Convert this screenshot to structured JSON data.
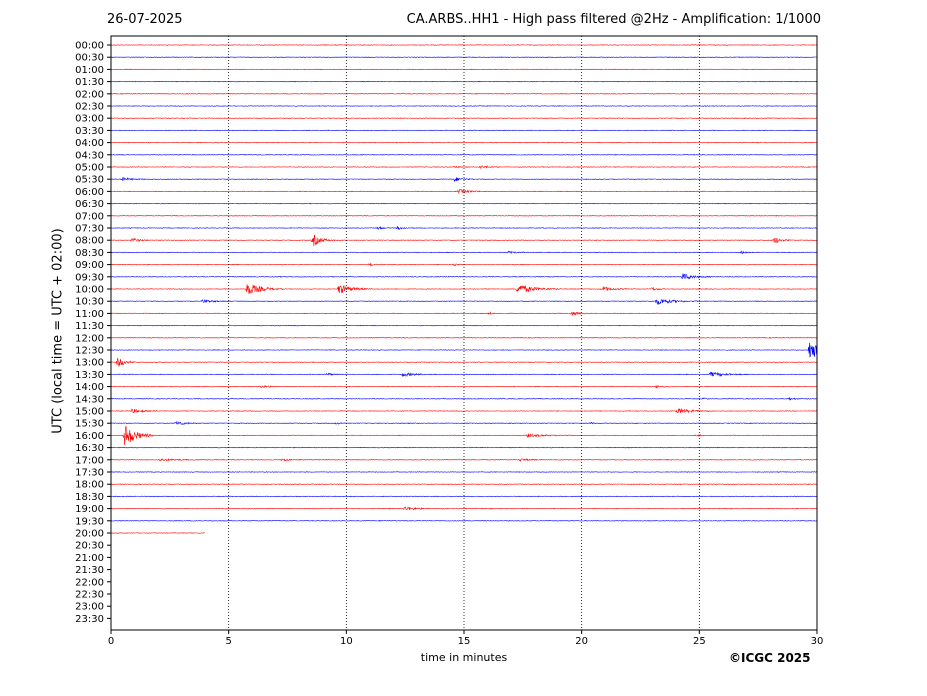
{
  "header": {
    "date": "26-07-2025",
    "title": "CA.ARBS..HH1 - High pass filtered @2Hz - Amplification: 1/1000"
  },
  "footer": {
    "credit": "©ICGC 2025"
  },
  "colors": {
    "trace_even": "#ff0000",
    "trace_odd": "#0000ff",
    "axis": "#000000",
    "grid": "#000000"
  },
  "chart_data": {
    "type": "line",
    "title": "CA.ARBS..HH1 - High pass filtered @2Hz - Amplification: 1/1000",
    "xlabel": "time in minutes",
    "ylabel": "UTC (local time = UTC + 02:00)",
    "xlim": [
      0,
      30
    ],
    "x_ticks": [
      0,
      5,
      10,
      15,
      20,
      25,
      30
    ],
    "vertical_grid_at": [
      5,
      10,
      15,
      20,
      25
    ],
    "grid_style": "dotted vertical lines",
    "y_ticks": [
      "00:00",
      "00:30",
      "01:00",
      "01:30",
      "02:00",
      "02:30",
      "03:00",
      "03:30",
      "04:00",
      "04:30",
      "05:00",
      "05:30",
      "06:00",
      "06:30",
      "07:00",
      "07:30",
      "08:00",
      "08:30",
      "09:00",
      "09:30",
      "10:00",
      "10:30",
      "11:00",
      "11:30",
      "12:00",
      "12:30",
      "13:00",
      "13:30",
      "14:00",
      "14:30",
      "15:00",
      "15:30",
      "16:00",
      "16:30",
      "17:00",
      "17:30",
      "18:00",
      "18:30",
      "19:00",
      "19:30",
      "20:00",
      "20:30",
      "21:00",
      "21:30",
      "22:00",
      "22:30",
      "23:00",
      "23:30"
    ],
    "trace_color_pattern": [
      "red",
      "blue"
    ],
    "recorded_until": {
      "row": "20:00",
      "minute": 4
    },
    "events": [
      {
        "row": "05:00",
        "minute": 15.7,
        "amp": 0.15,
        "dur": 0.9
      },
      {
        "row": "05:00",
        "minute": 14.6,
        "amp": 0.08,
        "dur": 0.5
      },
      {
        "row": "05:30",
        "minute": 0.5,
        "amp": 0.15,
        "dur": 1.0
      },
      {
        "row": "05:30",
        "minute": 14.6,
        "amp": 0.2,
        "dur": 0.9
      },
      {
        "row": "06:00",
        "minute": 14.8,
        "amp": 0.18,
        "dur": 1.2
      },
      {
        "row": "07:30",
        "minute": 11.4,
        "amp": 0.2,
        "dur": 0.3
      },
      {
        "row": "07:30",
        "minute": 12.2,
        "amp": 0.15,
        "dur": 0.6
      },
      {
        "row": "08:00",
        "minute": 0.9,
        "amp": 0.2,
        "dur": 0.9
      },
      {
        "row": "08:00",
        "minute": 8.6,
        "amp": 0.55,
        "dur": 0.9
      },
      {
        "row": "08:00",
        "minute": 28.2,
        "amp": 0.3,
        "dur": 0.8
      },
      {
        "row": "08:30",
        "minute": 16.9,
        "amp": 0.1,
        "dur": 0.8
      },
      {
        "row": "08:30",
        "minute": 26.8,
        "amp": 0.1,
        "dur": 0.5
      },
      {
        "row": "09:00",
        "minute": 11.0,
        "amp": 0.12,
        "dur": 0.5
      },
      {
        "row": "09:00",
        "minute": 14.6,
        "amp": 0.12,
        "dur": 0.4
      },
      {
        "row": "09:30",
        "minute": 24.3,
        "amp": 0.3,
        "dur": 1.3
      },
      {
        "row": "10:00",
        "minute": 5.8,
        "amp": 0.6,
        "dur": 1.5
      },
      {
        "row": "10:00",
        "minute": 9.7,
        "amp": 0.45,
        "dur": 1.4
      },
      {
        "row": "10:00",
        "minute": 17.3,
        "amp": 0.45,
        "dur": 1.8
      },
      {
        "row": "10:00",
        "minute": 20.9,
        "amp": 0.25,
        "dur": 1.0
      },
      {
        "row": "10:00",
        "minute": 23.0,
        "amp": 0.15,
        "dur": 0.6
      },
      {
        "row": "10:30",
        "minute": 3.9,
        "amp": 0.15,
        "dur": 1.2
      },
      {
        "row": "10:30",
        "minute": 23.2,
        "amp": 0.3,
        "dur": 1.8
      },
      {
        "row": "11:00",
        "minute": 19.6,
        "amp": 0.18,
        "dur": 0.7
      },
      {
        "row": "11:00",
        "minute": 16.1,
        "amp": 0.1,
        "dur": 0.3
      },
      {
        "row": "12:30",
        "minute": 29.7,
        "amp": 1.0,
        "dur": 1.2
      },
      {
        "row": "13:00",
        "minute": 0.3,
        "amp": 0.45,
        "dur": 0.8
      },
      {
        "row": "13:30",
        "minute": 9.2,
        "amp": 0.12,
        "dur": 0.6
      },
      {
        "row": "13:30",
        "minute": 12.4,
        "amp": 0.18,
        "dur": 1.4
      },
      {
        "row": "13:30",
        "minute": 25.5,
        "amp": 0.2,
        "dur": 1.8
      },
      {
        "row": "14:00",
        "minute": 6.4,
        "amp": 0.1,
        "dur": 0.8
      },
      {
        "row": "14:00",
        "minute": 23.2,
        "amp": 0.12,
        "dur": 0.7
      },
      {
        "row": "14:30",
        "minute": 25.2,
        "amp": 0.08,
        "dur": 0.3
      },
      {
        "row": "14:30",
        "minute": 28.8,
        "amp": 0.1,
        "dur": 0.8
      },
      {
        "row": "15:00",
        "minute": 0.9,
        "amp": 0.22,
        "dur": 1.1
      },
      {
        "row": "15:00",
        "minute": 24.1,
        "amp": 0.25,
        "dur": 1.5
      },
      {
        "row": "15:30",
        "minute": 2.8,
        "amp": 0.2,
        "dur": 1.0
      },
      {
        "row": "15:30",
        "minute": 9.6,
        "amp": 0.1,
        "dur": 0.4
      },
      {
        "row": "15:30",
        "minute": 20.4,
        "amp": 0.08,
        "dur": 0.4
      },
      {
        "row": "16:00",
        "minute": 0.6,
        "amp": 1.1,
        "dur": 1.2
      },
      {
        "row": "16:00",
        "minute": 17.7,
        "amp": 0.15,
        "dur": 1.8
      },
      {
        "row": "16:00",
        "minute": 24.9,
        "amp": 0.1,
        "dur": 0.5
      },
      {
        "row": "17:00",
        "minute": 2.1,
        "amp": 0.12,
        "dur": 1.8
      },
      {
        "row": "17:00",
        "minute": 7.3,
        "amp": 0.12,
        "dur": 0.8
      },
      {
        "row": "17:00",
        "minute": 17.4,
        "amp": 0.12,
        "dur": 0.9
      },
      {
        "row": "19:00",
        "minute": 12.5,
        "amp": 0.18,
        "dur": 1.3
      }
    ]
  }
}
